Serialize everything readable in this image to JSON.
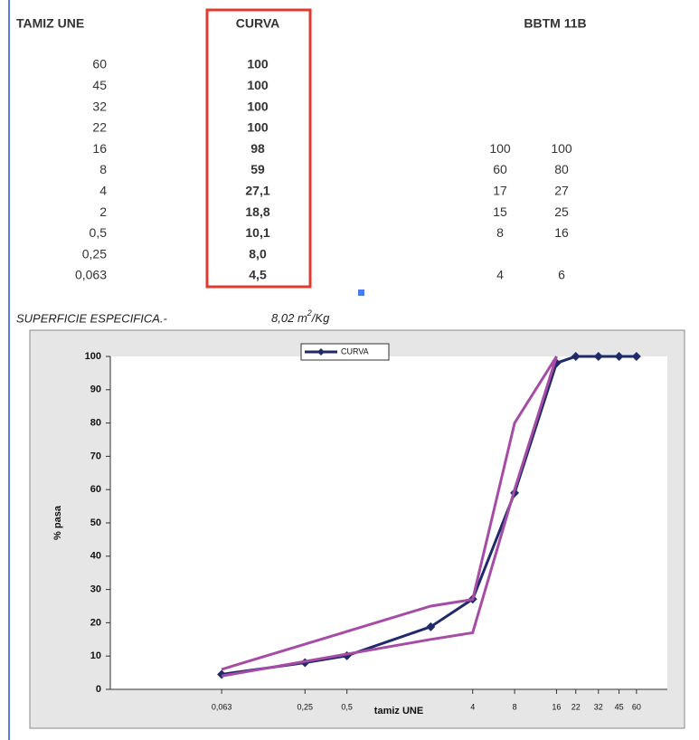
{
  "table": {
    "headers": [
      "TAMIZ UNE",
      "CURVA",
      "BBTM 11B"
    ],
    "rows": [
      {
        "sieve": "60",
        "curva": "100"
      },
      {
        "sieve": "45",
        "curva": "100"
      },
      {
        "sieve": "32",
        "curva": "100"
      },
      {
        "sieve": "22",
        "curva": "100"
      },
      {
        "sieve": "16",
        "curva": "98",
        "min": "100",
        "max": "100"
      },
      {
        "sieve": "8",
        "curva": "59",
        "min": "60",
        "max": "80"
      },
      {
        "sieve": "4",
        "curva": "27,1",
        "min": "17",
        "max": "27"
      },
      {
        "sieve": "2",
        "curva": "18,8",
        "min": "15",
        "max": "25"
      },
      {
        "sieve": "0,5",
        "curva": "10,1",
        "min": "8",
        "max": "16"
      },
      {
        "sieve": "0,25",
        "curva": "8,0"
      },
      {
        "sieve": "0,063",
        "curva": "4,5",
        "min": "4",
        "max": "6"
      }
    ]
  },
  "note": {
    "label": "SUPERFICIE ESPECIFICA.-",
    "value": "8,02",
    "unit_base": "m",
    "unit_exp": "2",
    "unit_tail": "/Kg"
  },
  "chart_data": {
    "type": "line",
    "xlabel": "tamiz UNE",
    "ylabel": "% pasa",
    "xscale": "log",
    "legend": "top",
    "xlim": [
      0.01,
      100
    ],
    "ylim": [
      0,
      100
    ],
    "xticks": [
      {
        "value": 0.063,
        "label": "0,063"
      },
      {
        "value": 0.25,
        "label": "0,25"
      },
      {
        "value": 0.5,
        "label": "0,5"
      },
      4,
      8,
      16,
      22,
      32,
      45,
      60
    ],
    "yticks": [
      0,
      10,
      20,
      30,
      40,
      50,
      60,
      70,
      80,
      90,
      100
    ],
    "series": [
      {
        "name": "CURVA",
        "color": "#1f2a6b",
        "marker": "diamond",
        "x": [
          0.063,
          0.25,
          0.5,
          2,
          4,
          8,
          16,
          22,
          32,
          45,
          60
        ],
        "values": [
          4.5,
          8.0,
          10.1,
          18.8,
          27.1,
          59,
          98,
          100,
          100,
          100,
          100
        ]
      },
      {
        "color": "#a64ca6",
        "x": [
          0.063,
          2,
          4,
          8,
          16
        ],
        "values": [
          4,
          15,
          17,
          60,
          100
        ]
      },
      {
        "color": "#a64ca6",
        "x": [
          0.063,
          2,
          4,
          8,
          16
        ],
        "values": [
          6,
          25,
          27,
          80,
          100
        ]
      }
    ]
  }
}
